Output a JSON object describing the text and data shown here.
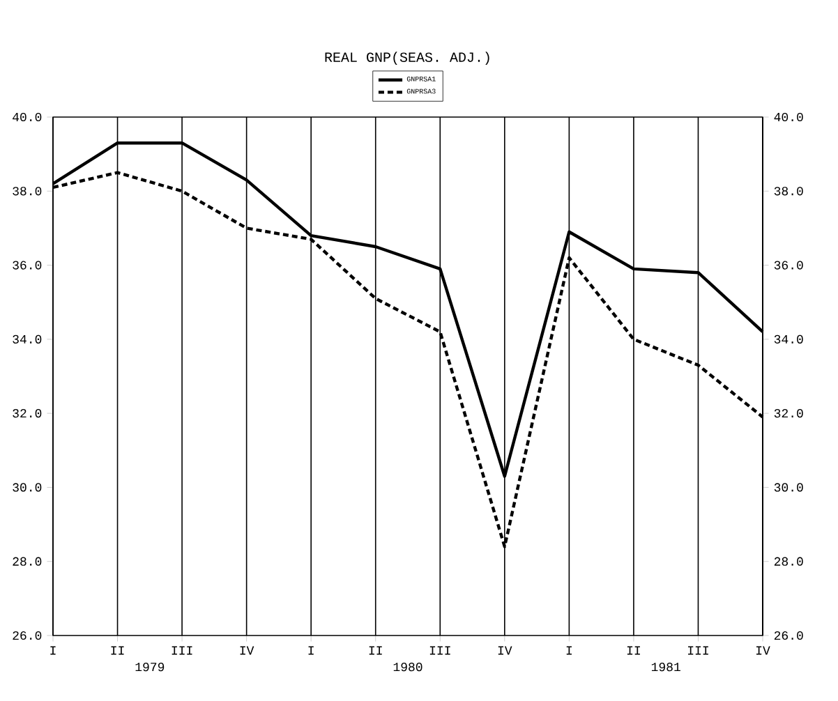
{
  "chart_data": {
    "type": "line",
    "title": "REAL GNP(SEAS. ADJ.)",
    "categories": [
      "I",
      "II",
      "III",
      "IV",
      "I",
      "II",
      "III",
      "IV",
      "I",
      "II",
      "III",
      "IV"
    ],
    "series": [
      {
        "name": "GNPRSA1",
        "color": "#000000",
        "line_style": "solid",
        "values": [
          38.2,
          39.3,
          39.3,
          38.3,
          36.8,
          36.5,
          35.9,
          30.3,
          36.9,
          35.9,
          35.8,
          34.2
        ]
      },
      {
        "name": "GNPRSA3",
        "color": "#000000",
        "line_style": "dashed",
        "values": [
          38.1,
          38.5,
          38.0,
          37.0,
          36.7,
          35.1,
          34.2,
          28.4,
          36.2,
          34.0,
          33.3,
          31.9
        ]
      }
    ],
    "ylim": [
      26,
      40
    ],
    "yticks": [
      {
        "value": 26,
        "label": "26.0"
      },
      {
        "value": 28,
        "label": "28.0"
      },
      {
        "value": 30,
        "label": "30.0"
      },
      {
        "value": 32,
        "label": "32.0"
      },
      {
        "value": 34,
        "label": "34.0"
      },
      {
        "value": 36,
        "label": "36.0"
      },
      {
        "value": 38,
        "label": "38.0"
      },
      {
        "value": 40,
        "label": "40.0"
      }
    ],
    "y2lim": [
      26,
      40
    ],
    "y2ticks": [
      {
        "value": 26,
        "label": "26.0"
      },
      {
        "value": 28,
        "label": "28.0"
      },
      {
        "value": 30,
        "label": "30.0"
      },
      {
        "value": 32,
        "label": "32.0"
      },
      {
        "value": 34,
        "label": "34.0"
      },
      {
        "value": 36,
        "label": "36.0"
      },
      {
        "value": 38,
        "label": "38.0"
      },
      {
        "value": 40,
        "label": "40.0"
      }
    ],
    "annotations": [
      "1979",
      "1980",
      "1981"
    ],
    "grid": "x",
    "legend": "top",
    "marker": "none"
  }
}
